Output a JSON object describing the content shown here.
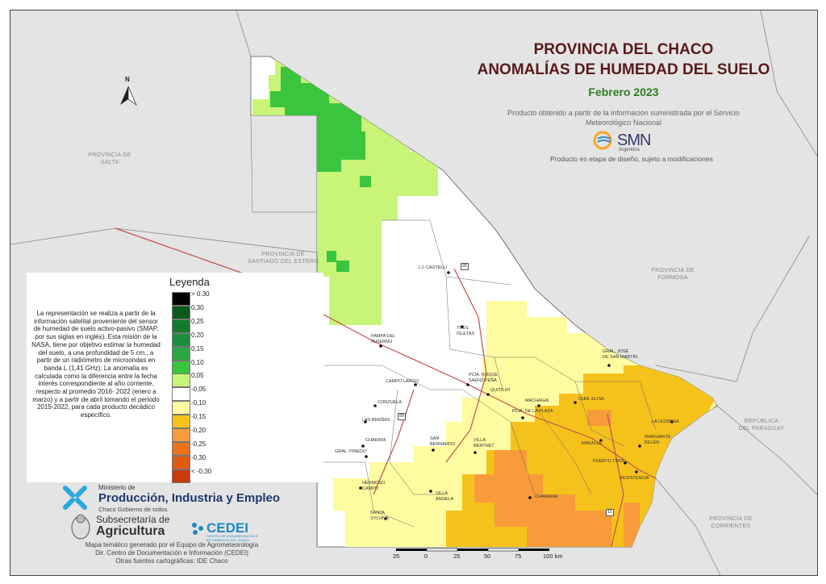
{
  "title": {
    "line1": "PROVINCIA DEL CHACO",
    "line2": "ANOMALÍAS DE HUMEDAD DEL SUELO"
  },
  "date": "Febrero 2023",
  "source_text": "Producto obtenido a partir de la información suministrada por el Servicio Meteorológico Nacional",
  "smn_logo": {
    "text": "SMN",
    "sub": "Argentina"
  },
  "disclaimer": "Producto en etapa de diseño, sujeto a modificaciones",
  "north_label": "N",
  "provinces": {
    "salta": [
      "PROVINCIA DE",
      "SALTA"
    ],
    "santiago": [
      "PROVINCIA DE",
      "SANTIAGO DEL ESTERO"
    ],
    "formosa": [
      "PROVINCIA DE",
      "FORMOSA"
    ],
    "paraguay": [
      "REPÚBLICA",
      "DEL PARAGUAY"
    ],
    "corrientes": [
      "PROVINCIA DE",
      "CORRIENTES"
    ]
  },
  "towns": {
    "castelli": "J.J. CASTELLI",
    "tres_isletas": [
      "TRES",
      "ISLETAS"
    ],
    "pampa": [
      "PAMPA DEL",
      "INFIERNO"
    ],
    "san_martin": [
      "GRAL. JOSÉ",
      "DE SAN MARTÍN"
    ],
    "campo_largo": "CAMPO LARGO",
    "saenz_pena": [
      "PCIA. ROQUE",
      "SAENZ PEÑA"
    ],
    "quitilipi": "QUITILIPI",
    "machagai": "MACHAGAI",
    "chia_elisa": "CHIA. ELISA",
    "corzuela": "CORZUELA",
    "plaza": "PCIA. DE LA PLAZA",
    "las_brenas": "LAS BREÑAS",
    "la_leonesa": "LA LEONESA",
    "charata": "CHARATA",
    "san_bernardo": [
      "SAN",
      "BERNARDO"
    ],
    "villa_berthet": [
      "VILLA",
      "BERTHET"
    ],
    "makalle": "MAKALLE",
    "margarita_belen": [
      "MARGARITA",
      "BELÉN"
    ],
    "pinedo": "GRAL. PINEDO",
    "puerto_tirol": "PUERTO TIROL",
    "resistencia": "RESISTENCIA",
    "hermoso_campo": [
      "HERMOSO",
      "CAMPO"
    ],
    "villa_angela": [
      "VILLA",
      "ÁNGELA"
    ],
    "charadai": "CHARADAI",
    "santa_sylvina": [
      "SANTA",
      "SYLVINA"
    ]
  },
  "route_labels": {
    "r16": "16",
    "r95": "95",
    "r89": "89",
    "r11": "11"
  },
  "legend": {
    "title": "Leyenda",
    "description": "La representación se realiza a partir de la información satelital proveniente del sensor de humedad de suelo activo-pasivo (SMAP, por sus siglas en inglés). Esta misión de la NASA, tiene por objetivo estimar la humedad del suelo, a una profundidad de 5 cm., a partir de un radiómetro de microondas en banda L (1,41 GHz). La anomalía es calculada como la diferencia entre la fecha interés correspondiente al año corriente, respecto al promedio 2016- 2022 (enero a marzo) y a partir de abril tomando el periodo 2015-2022, para cada producto decádico específico.",
    "items": [
      {
        "label": "> 0.30",
        "color": "#000000"
      },
      {
        "label": "0,30",
        "color": "#0b5a1c"
      },
      {
        "label": "0,25",
        "color": "#147a2e"
      },
      {
        "label": "0,20",
        "color": "#1c8f3d"
      },
      {
        "label": "0,15",
        "color": "#2aa840"
      },
      {
        "label": "0,10",
        "color": "#3bc43e"
      },
      {
        "label": "0,05",
        "color": "#c8f478"
      },
      {
        "label": "-0,05",
        "color": "#ffffff"
      },
      {
        "label": "-0,10",
        "color": "#fffba0"
      },
      {
        "label": "-0,15",
        "color": "#f5c21b"
      },
      {
        "label": "-0,20",
        "color": "#f89b3a"
      },
      {
        "label": "-0,25",
        "color": "#e8741c"
      },
      {
        "label": "-0,30",
        "color": "#e05a10"
      },
      {
        "label": "< -0,30",
        "color": "#c83a0a"
      }
    ]
  },
  "ministry": {
    "small": "Ministerio de",
    "big": "Producción, Industria y Empleo",
    "sub": "Chaco Gobierno de todos"
  },
  "subsecretaria": {
    "line1": "Subsecretaría de",
    "line2": "Agricultura"
  },
  "cedei": {
    "name": "CEDEI",
    "sub": "CENTRO DE DOCUMENTACIÓN E INFORMACIÓN DEL CHACO"
  },
  "credits": [
    "Mapa temático generado por el Equipo de Agrometeorología",
    "Dir. Centro de Documentación e Información (CEDEI)",
    "Otras fuentes cartográficas: IDE Chaco"
  ],
  "scale": [
    "25",
    "0",
    "25",
    "50",
    "75",
    "100 km"
  ]
}
